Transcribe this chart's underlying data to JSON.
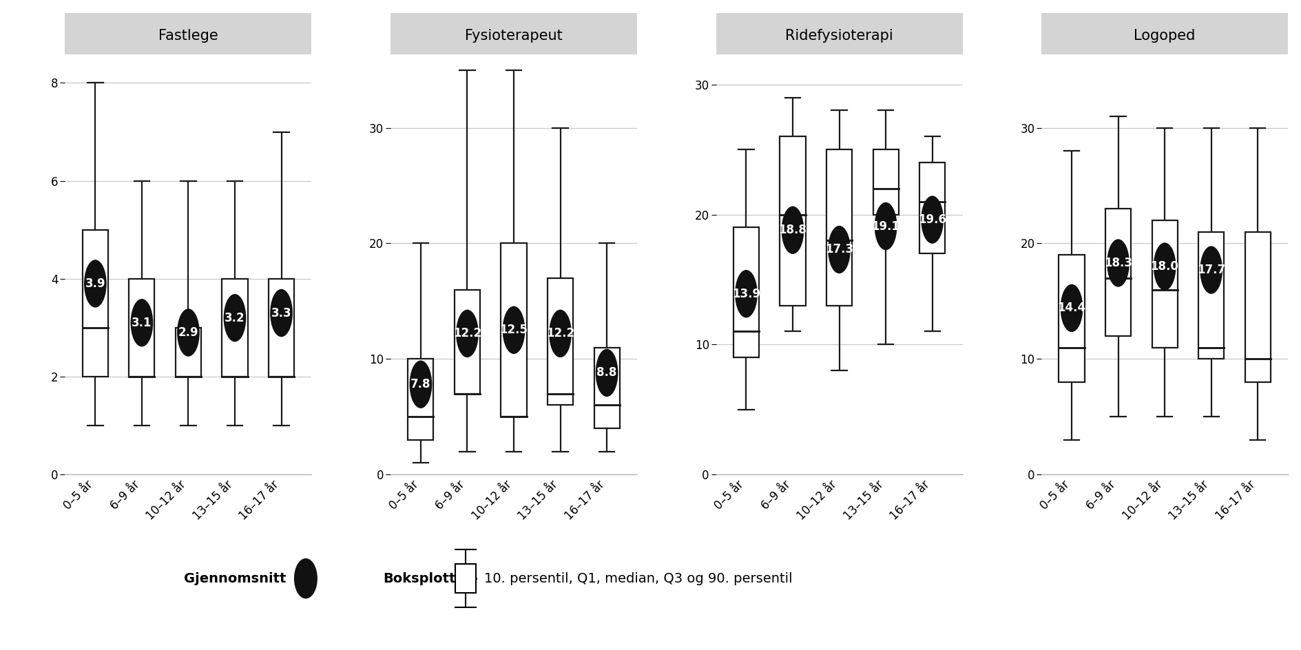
{
  "panels": [
    {
      "title": "Fastlege",
      "ylim": [
        0,
        8.5
      ],
      "yticks": [
        0,
        2,
        4,
        6,
        8
      ],
      "ytick_labels": [
        "0",
        "2",
        "4",
        "6",
        "8"
      ],
      "categories": [
        "0–5 år",
        "6–9 år",
        "10–12 år",
        "13–15 år",
        "16–17 år"
      ],
      "means": [
        3.9,
        3.1,
        2.9,
        3.2,
        3.3
      ],
      "p10": [
        1.0,
        1.0,
        1.0,
        1.0,
        1.0
      ],
      "q1": [
        2.0,
        2.0,
        2.0,
        2.0,
        2.0
      ],
      "median": [
        3.0,
        2.0,
        2.0,
        2.0,
        2.0
      ],
      "q3": [
        5.0,
        4.0,
        3.0,
        4.0,
        4.0
      ],
      "p90": [
        8.0,
        6.0,
        6.0,
        6.0,
        7.0
      ]
    },
    {
      "title": "Fysioterapeut",
      "ylim": [
        0,
        36
      ],
      "yticks": [
        0,
        10,
        20,
        30
      ],
      "ytick_labels": [
        "0",
        "10",
        "20",
        "30"
      ],
      "categories": [
        "0–5 år",
        "6–9 år",
        "10–12 år",
        "13–15 år",
        "16–17 år"
      ],
      "means": [
        7.8,
        12.2,
        12.5,
        12.2,
        8.8
      ],
      "p10": [
        1.0,
        2.0,
        2.0,
        2.0,
        2.0
      ],
      "q1": [
        3.0,
        7.0,
        5.0,
        6.0,
        4.0
      ],
      "median": [
        5.0,
        7.0,
        5.0,
        7.0,
        6.0
      ],
      "q3": [
        10.0,
        16.0,
        20.0,
        17.0,
        11.0
      ],
      "p90": [
        20.0,
        35.0,
        35.0,
        30.0,
        20.0
      ]
    },
    {
      "title": "Ridefysioterapi",
      "ylim": [
        0,
        32
      ],
      "yticks": [
        0,
        10,
        20,
        30
      ],
      "ytick_labels": [
        "0",
        "10",
        "20",
        "30"
      ],
      "categories": [
        "0–5 år",
        "6–9 år",
        "10–12 år",
        "13–15 år",
        "16–17 år"
      ],
      "means": [
        13.9,
        18.8,
        17.3,
        19.1,
        19.6
      ],
      "p10": [
        5.0,
        11.0,
        8.0,
        10.0,
        11.0
      ],
      "q1": [
        9.0,
        13.0,
        13.0,
        20.0,
        17.0
      ],
      "median": [
        11.0,
        20.0,
        18.0,
        22.0,
        21.0
      ],
      "q3": [
        19.0,
        26.0,
        25.0,
        25.0,
        24.0
      ],
      "p90": [
        25.0,
        29.0,
        28.0,
        28.0,
        26.0
      ]
    },
    {
      "title": "Logoped",
      "ylim": [
        0,
        36
      ],
      "yticks": [
        0,
        10,
        20,
        30
      ],
      "ytick_labels": [
        "0",
        "10",
        "20",
        "30"
      ],
      "categories": [
        "0–5 år",
        "6–9 år",
        "10–12 år",
        "13–15 år",
        "16–17 år"
      ],
      "means": [
        14.4,
        18.3,
        18.0,
        17.7,
        null
      ],
      "p10": [
        3.0,
        5.0,
        5.0,
        5.0,
        3.0
      ],
      "q1": [
        8.0,
        12.0,
        11.0,
        10.0,
        8.0
      ],
      "median": [
        11.0,
        17.0,
        16.0,
        11.0,
        10.0
      ],
      "q3": [
        19.0,
        23.0,
        22.0,
        21.0,
        21.0
      ],
      "p90": [
        28.0,
        31.0,
        30.0,
        30.0,
        30.0
      ]
    }
  ],
  "box_color": "#ffffff",
  "box_edgecolor": "#1a1a1a",
  "mean_circle_color": "#111111",
  "mean_text_color": "#ffffff",
  "background_color": "#ffffff",
  "title_bg_color": "#d4d4d4",
  "grid_color": "#c8c8c8",
  "legend_text": "Gjennomsnitt",
  "legend_text2": "Boksplott",
  "legend_text3": "10. persentil, Q1, median, Q3 og 90. persentil",
  "title_fontsize": 15,
  "tick_fontsize": 12,
  "mean_fontsize": 12,
  "legend_fontsize": 14
}
